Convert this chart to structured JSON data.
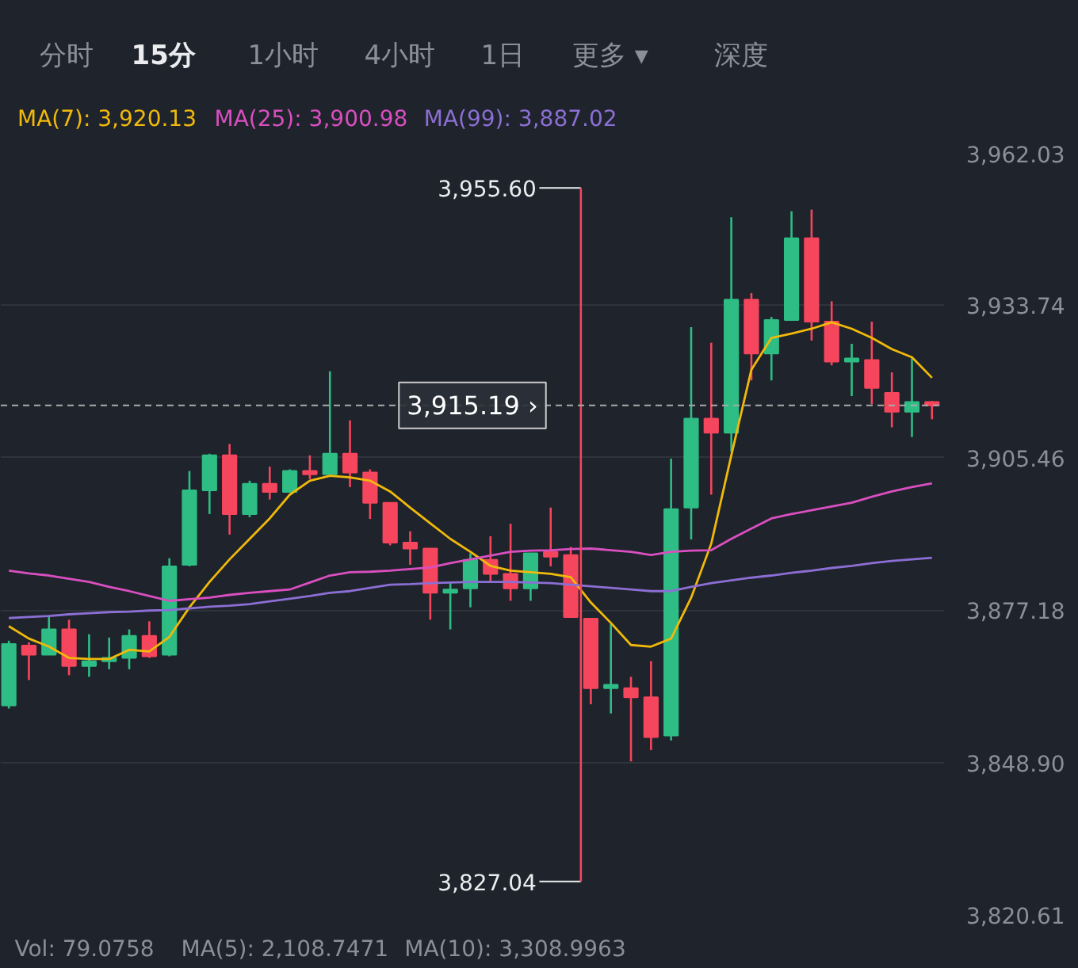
{
  "chart_data": {
    "type": "candlestick",
    "categories": [
      null,
      null,
      null,
      null,
      null,
      null,
      null,
      null,
      null,
      null,
      null,
      null,
      null,
      null,
      null,
      null,
      null,
      null,
      null,
      null,
      null,
      null,
      null,
      null,
      null,
      null,
      null,
      null,
      null,
      null,
      null,
      null,
      null,
      null,
      null,
      null,
      null,
      null,
      null,
      null,
      null,
      null,
      null,
      null,
      null,
      null,
      null
    ],
    "series": [
      {
        "ohlc": [
          [
            3859.5,
            3871.5,
            3858.9,
            3870.9
          ],
          [
            3870.6,
            3871.2,
            3864.2,
            3868.9
          ],
          [
            3868.9,
            3876.2,
            3868.9,
            3873.6
          ],
          [
            3873.6,
            3875.4,
            3865.1,
            3866.8
          ],
          [
            3866.8,
            3872.7,
            3864.8,
            3867.7
          ],
          [
            3867.7,
            3872.1,
            3866.2,
            3868.3
          ],
          [
            3868.3,
            3873.6,
            3866.2,
            3872.4
          ],
          [
            3872.4,
            3875.1,
            3868.3,
            3868.6
          ],
          [
            3868.9,
            3886.8,
            3868.6,
            3885.3
          ],
          [
            3885.6,
            3903.0,
            3885.3,
            3899.4
          ],
          [
            3899.4,
            3906.2,
            3895.0,
            3905.9
          ],
          [
            3905.9,
            3908.0,
            3891.2,
            3895.0
          ],
          [
            3895.0,
            3901.2,
            3894.4,
            3900.6
          ],
          [
            3900.6,
            3903.8,
            3897.7,
            3899.1
          ],
          [
            3899.1,
            3903.3,
            3899.1,
            3903.0
          ],
          [
            3903.0,
            3905.9,
            3901.5,
            3902.4
          ],
          [
            3902.4,
            3921.5,
            3902.4,
            3906.2
          ],
          [
            3906.2,
            3912.4,
            3900.0,
            3902.7
          ],
          [
            3902.7,
            3903.3,
            3894.1,
            3897.1
          ],
          [
            3897.1,
            3897.1,
            3889.2,
            3889.7
          ],
          [
            3889.7,
            3891.8,
            3885.6,
            3888.6
          ],
          [
            3888.6,
            3888.6,
            3875.4,
            3880.4
          ],
          [
            3880.4,
            3882.4,
            3873.6,
            3881.0
          ],
          [
            3881.2,
            3887.7,
            3877.7,
            3886.5
          ],
          [
            3886.5,
            3890.9,
            3882.4,
            3883.9
          ],
          [
            3883.9,
            3893.2,
            3878.9,
            3881.2
          ],
          [
            3881.2,
            3887.7,
            3878.9,
            3887.7
          ],
          [
            3888.0,
            3896.2,
            3885.3,
            3887.1
          ],
          [
            3887.4,
            3888.9,
            3875.9,
            3875.9
          ],
          [
            3875.6,
            3875.6,
            3859.7,
            3862.7
          ],
          [
            3862.7,
            3874.6,
            3858.0,
            3863.3
          ],
          [
            3862.7,
            3864.8,
            3849.1,
            3861.0
          ],
          [
            3861.0,
            3867.7,
            3851.2,
            3853.6
          ],
          [
            3853.9,
            3905.3,
            3853.0,
            3895.9
          ],
          [
            3896.2,
            3929.7,
            3890.3,
            3912.7
          ],
          [
            3912.7,
            3926.8,
            3898.6,
            3910.1
          ],
          [
            3910.1,
            3950.1,
            3906.6,
            3934.8
          ],
          [
            3934.8,
            3936.0,
            3919.8,
            3924.8
          ],
          [
            3924.8,
            3931.6,
            3919.8,
            3931.0
          ],
          [
            3931.0,
            3951.2,
            3931.0,
            3946.2
          ],
          [
            3946.2,
            3951.5,
            3927.2,
            3930.7
          ],
          [
            3930.7,
            3934.5,
            3922.6,
            3923.3
          ],
          [
            3923.3,
            3926.6,
            3916.9,
            3923.9
          ],
          [
            3923.6,
            3930.7,
            3915.4,
            3918.4
          ],
          [
            3917.5,
            3921.3,
            3911.1,
            3914.0
          ],
          [
            3914.0,
            3923.9,
            3909.3,
            3915.8
          ],
          [
            3915.8,
            3916.0,
            3912.6,
            3915.19
          ]
        ],
        "colors": [
          "#2ebd85",
          "#f6465d",
          "#2ebd85",
          "#f6465d",
          "#2ebd85",
          "#2ebd85",
          "#2ebd85",
          "#f6465d",
          "#2ebd85",
          "#2ebd85",
          "#2ebd85",
          "#f6465d",
          "#2ebd85",
          "#f6465d",
          "#2ebd85",
          "#f6465d",
          "#2ebd85",
          "#f6465d",
          "#f6465d",
          "#f6465d",
          "#f6465d",
          "#f6465d",
          "#2ebd85",
          "#2ebd85",
          "#f6465d",
          "#f6465d",
          "#2ebd85",
          "#f6465d",
          "#f6465d",
          "#f6465d",
          "#2ebd85",
          "#f6465d",
          "#f6465d",
          "#2ebd85",
          "#2ebd85",
          "#f6465d",
          "#2ebd85",
          "#f6465d",
          "#2ebd85",
          "#2ebd85",
          "#f6465d",
          "#f6465d",
          "#2ebd85",
          "#f6465d",
          "#f6465d",
          "#2ebd85",
          "#f6465d"
        ]
      },
      {
        "type": "line",
        "name": "MA(7): 3,920.13",
        "color": "#f0b90b",
        "values": [
          3874.2,
          3871.9,
          3870.4,
          3868.3,
          3868.1,
          3868.1,
          3869.8,
          3869.5,
          3872.2,
          3877.7,
          3882.4,
          3886.6,
          3890.4,
          3894.2,
          3898.6,
          3901.2,
          3902.1,
          3901.8,
          3901.2,
          3899.2,
          3896.2,
          3893.3,
          3890.4,
          3888.0,
          3885.4,
          3884.5,
          3884.2,
          3883.9,
          3883.3,
          3878.6,
          3874.8,
          3870.7,
          3870.4,
          3871.9,
          3879.5,
          3889.5,
          3905.9,
          3921.8,
          3927.7,
          3928.5,
          3929.4,
          3930.6,
          3929.4,
          3927.7,
          3925.6,
          3924.1,
          3920.3
        ]
      },
      {
        "type": "line",
        "name": "MA(25): 3,900.98",
        "color": "#d94fc0",
        "values": [
          3884.5,
          3884.0,
          3883.6,
          3883.0,
          3882.4,
          3881.5,
          3880.7,
          3879.8,
          3878.9,
          3879.2,
          3879.5,
          3880.0,
          3880.4,
          3880.7,
          3881.0,
          3882.3,
          3883.6,
          3884.2,
          3884.3,
          3884.5,
          3884.8,
          3885.1,
          3885.9,
          3886.6,
          3887.3,
          3888.0,
          3888.2,
          3888.3,
          3888.5,
          3888.6,
          3888.3,
          3888.0,
          3887.4,
          3888.0,
          3888.2,
          3888.3,
          3890.4,
          3892.3,
          3894.2,
          3895.0,
          3895.7,
          3896.4,
          3897.1,
          3898.2,
          3899.2,
          3900.0,
          3900.7
        ]
      },
      {
        "type": "line",
        "name": "MA(99): 3,887.02",
        "color": "#8c6fd4",
        "values": [
          3875.7,
          3875.9,
          3876.1,
          3876.4,
          3876.6,
          3876.8,
          3876.9,
          3877.1,
          3877.2,
          3877.5,
          3877.8,
          3878.0,
          3878.3,
          3878.8,
          3879.3,
          3879.8,
          3880.4,
          3880.7,
          3881.3,
          3881.9,
          3882.0,
          3882.2,
          3882.3,
          3882.4,
          3882.4,
          3882.4,
          3882.3,
          3882.2,
          3881.9,
          3881.6,
          3881.3,
          3881.0,
          3880.7,
          3880.7,
          3881.5,
          3882.2,
          3882.7,
          3883.2,
          3883.6,
          3884.1,
          3884.5,
          3885.0,
          3885.4,
          3885.9,
          3886.3,
          3886.6,
          3886.9
        ]
      }
    ],
    "ylim": [
      3820.61,
      3962.03
    ],
    "yticks": [
      {
        "value": 3962.03,
        "label": "3,962.03"
      },
      {
        "value": 3933.74,
        "label": "3,933.74"
      },
      {
        "value": 3905.46,
        "label": "3,905.46"
      },
      {
        "value": 3877.18,
        "label": "3,877.18"
      },
      {
        "value": 3848.9,
        "label": "3,848.90"
      },
      {
        "value": 3820.61,
        "label": "3,820.61"
      }
    ],
    "tick_labels": "y",
    "grid": "y",
    "legend": "top left",
    "ref_lines": [
      {
        "axis": "y",
        "value": 3915.19,
        "label": "3,915.19 ›",
        "color": "#aaaaaa",
        "line_style": "dashed"
      }
    ],
    "annotations": [
      "分时",
      "15分",
      "1小时",
      "4小时",
      "1日",
      "更多 ▾",
      "深度",
      "Vol: 79.0758",
      "MA(5): 2,108.7471",
      "MA(10): 3,308.9963",
      "3,955.60",
      "3,827.04"
    ]
  }
}
